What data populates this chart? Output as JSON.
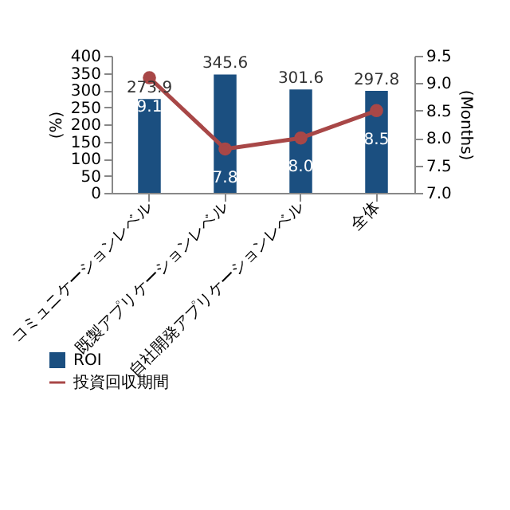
{
  "chart_data": {
    "type": "bar",
    "categories": [
      "コミュニケーションレベル",
      "既製アプリケーションレベル",
      "自社開発アプリケーションレベル",
      "全体"
    ],
    "ylabel": "(%)",
    "y2label": "(Months)",
    "ylim": [
      0,
      400
    ],
    "yticks": [
      0,
      50,
      100,
      150,
      200,
      250,
      300,
      350,
      400
    ],
    "y2lim": [
      7,
      9.5
    ],
    "y2ticks": [
      {
        "value": 7,
        "label": "7.0"
      },
      {
        "value": 7.5,
        "label": "7.5"
      },
      {
        "value": 8,
        "label": "8.0"
      },
      {
        "value": 8.5,
        "label": "8.5"
      },
      {
        "value": 9,
        "label": "9.0"
      },
      {
        "value": 9.5,
        "label": "9.5"
      }
    ],
    "legend": "bottom left",
    "marker": "circle",
    "series": [
      {
        "name": "ROI",
        "color": "#1b4f80",
        "values": [
          273.9,
          345.6,
          301.6,
          297.8
        ],
        "value_labels": [
          "273.9",
          "345.6",
          "301.6",
          "297.8"
        ]
      },
      {
        "name": "投資回収期間",
        "type": "line",
        "axis": "y2",
        "color": "#a84747",
        "values": [
          9.1,
          7.8,
          8.0,
          8.5
        ],
        "value_labels": [
          "9.1",
          "7.8",
          "8.0",
          "8.5"
        ]
      }
    ]
  }
}
